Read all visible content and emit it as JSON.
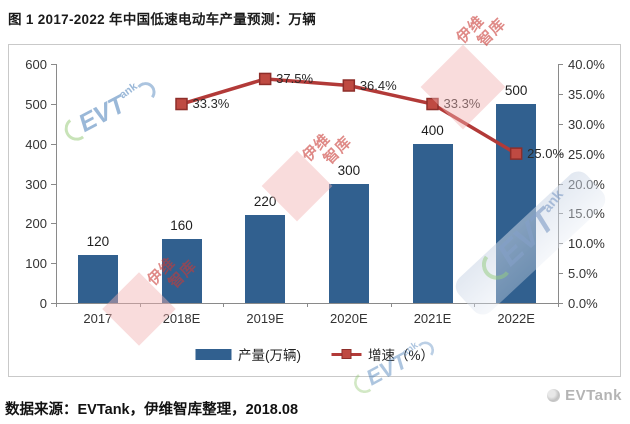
{
  "title": "图 1 2017-2022 年中国低速电动车产量预测：万辆",
  "footer": {
    "source": "数据来源：EVTank，伊维智库整理，2018.08",
    "brand": "EVTank"
  },
  "legend": {
    "bar_label": "产量(万辆)",
    "line_label": "增速（%）"
  },
  "watermark": {
    "logo_evt": "EVT",
    "logo_ank": "ank",
    "stamp_line1": "伊维",
    "stamp_line2": "智库"
  },
  "colors": {
    "bar": "#31608F",
    "line": "#B23A38",
    "marker_fill": "#BF4A42",
    "marker_stroke": "#8E2E2A"
  },
  "chart_data": {
    "type": "bar",
    "title": "图 1 2017-2022 年中国低速电动车产量预测：万辆",
    "categories": [
      "2017",
      "2018E",
      "2019E",
      "2020E",
      "2021E",
      "2022E"
    ],
    "series": [
      {
        "name": "产量(万辆)",
        "type": "bar",
        "values": [
          120,
          160,
          220,
          300,
          400,
          500
        ],
        "color": "#31608F"
      },
      {
        "name": "增速（%）",
        "type": "line",
        "values": [
          null,
          33.3,
          37.5,
          36.4,
          33.3,
          25.0
        ],
        "labels": [
          "",
          "33.3%",
          "37.5%",
          "36.4%",
          "33.3%",
          "25.0%"
        ],
        "color": "#B23A38"
      }
    ],
    "left_axis": {
      "ticks": [
        "0",
        "100",
        "200",
        "300",
        "400",
        "500",
        "600"
      ],
      "range": [
        0,
        600
      ]
    },
    "right_axis": {
      "ticks": [
        "0.0%",
        "5.0%",
        "10.0%",
        "15.0%",
        "20.0%",
        "25.0%",
        "30.0%",
        "35.0%",
        "40.0%"
      ],
      "range": [
        0,
        40
      ]
    },
    "grid": false,
    "legend_position": "bottom"
  }
}
